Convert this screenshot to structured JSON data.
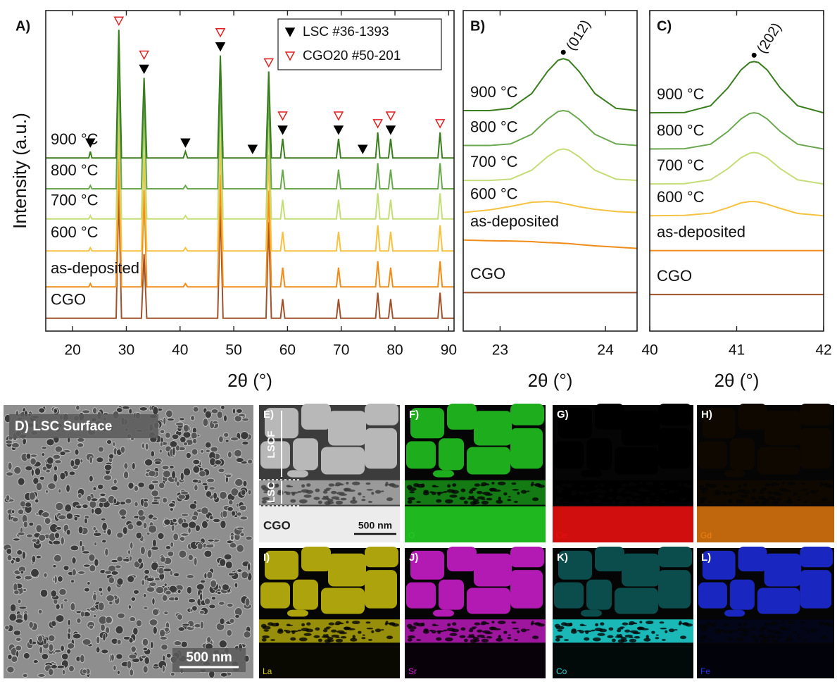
{
  "chart_data": [
    {
      "type": "line",
      "label": "A)",
      "xlabel": "2θ (°)",
      "ylabel": "Intensity (a.u.)",
      "xlim": [
        15,
        91
      ],
      "xticks": [
        20,
        30,
        40,
        50,
        60,
        70,
        80,
        90
      ],
      "ylim": [
        0,
        100
      ],
      "legend": "upper right",
      "x": [
        15,
        23,
        23.3,
        23.6,
        28.1,
        28.6,
        29.1,
        32.8,
        33.3,
        33.8,
        40.6,
        41,
        41.4,
        47,
        47.5,
        48,
        56,
        56.5,
        57,
        58.7,
        59.1,
        59.5,
        69.1,
        69.5,
        69.9,
        76.4,
        76.8,
        77.2,
        78.8,
        79.2,
        79.6,
        88,
        88.4,
        88.8,
        91
      ],
      "series": [
        {
          "name": "900 °C",
          "color": "#3a7d1e",
          "values": [
            54,
            54,
            56,
            54,
            54,
            94,
            54,
            54,
            79,
            54,
            54,
            56,
            54,
            54,
            86,
            54,
            54,
            81,
            54,
            54,
            60,
            54,
            54,
            60,
            54,
            54,
            62,
            54,
            54,
            60,
            54,
            54,
            62,
            54,
            54
          ]
        },
        {
          "name": "800 °C",
          "color": "#6aa84f",
          "values": [
            44.4,
            44.4,
            45.4,
            44.4,
            44.4,
            84.4,
            44.4,
            44.4,
            74.4,
            44.4,
            44.4,
            45.4,
            44.4,
            44.4,
            79.4,
            44.4,
            44.4,
            74.4,
            44.4,
            44.4,
            50.4,
            44.4,
            44.4,
            50.4,
            44.4,
            44.4,
            52.4,
            44.4,
            44.4,
            50.4,
            44.4,
            44.4,
            52.4,
            44.4,
            44.4
          ]
        },
        {
          "name": "700 °C",
          "color": "#c5dd78",
          "values": [
            35,
            35,
            36,
            35,
            35,
            75,
            35,
            35,
            65,
            35,
            35,
            36,
            35,
            35,
            70,
            35,
            35,
            65,
            35,
            35,
            41,
            35,
            35,
            41,
            35,
            35,
            43,
            35,
            35,
            41,
            35,
            35,
            43,
            35,
            35
          ]
        },
        {
          "name": "600 °C",
          "color": "#f5c242",
          "values": [
            25,
            25,
            26,
            25,
            25,
            65,
            25,
            25,
            55,
            25,
            25,
            26,
            25,
            25,
            60,
            25,
            25,
            55,
            25,
            25,
            31,
            25,
            25,
            31,
            25,
            25,
            33,
            25,
            25,
            31,
            25,
            25,
            33,
            25,
            25
          ]
        },
        {
          "name": "as-deposited",
          "color": "#f08c1a",
          "values": [
            13.8,
            13.8,
            14.8,
            13.8,
            13.8,
            53.8,
            13.8,
            13.8,
            43.8,
            13.8,
            13.8,
            14.8,
            13.8,
            13.8,
            48.8,
            13.8,
            13.8,
            43.8,
            13.8,
            13.8,
            19.8,
            13.8,
            13.8,
            19.8,
            13.8,
            13.8,
            21.8,
            13.8,
            13.8,
            19.8,
            13.8,
            13.8,
            21.8,
            13.8,
            13.8
          ]
        },
        {
          "name": "CGO",
          "color": "#a0522d",
          "values": [
            4,
            4,
            4,
            4,
            4,
            44,
            4,
            4,
            24,
            4,
            4,
            4,
            4,
            4,
            39,
            4,
            4,
            34,
            4,
            4,
            10,
            4,
            4,
            10,
            4,
            4,
            12,
            4,
            4,
            10,
            4,
            4,
            12,
            4,
            4
          ]
        }
      ],
      "reference_patterns": [
        {
          "name": "LSC #36-1393",
          "color": "#000000",
          "marker": "filled",
          "positions": [
            23.3,
            33.3,
            41,
            47.5,
            53.5,
            59.1,
            69.5,
            74,
            79.2
          ]
        },
        {
          "name": "CGO20 #50-201",
          "color": "#e02020",
          "marker": "open",
          "positions": [
            28.6,
            33.3,
            47.5,
            56.5,
            59.1,
            69.5,
            76.8,
            79.2,
            88.4
          ]
        }
      ]
    },
    {
      "type": "line",
      "label": "B)",
      "xlabel": "2θ (°)",
      "xlim": [
        22.65,
        24.3
      ],
      "xticks": [
        23,
        24
      ],
      "ylim": [
        0,
        100
      ],
      "x": [
        22.65,
        22.9,
        23.1,
        23.3,
        23.45,
        23.55,
        23.6,
        23.65,
        23.75,
        23.9,
        24.1,
        24.3
      ],
      "annotation": {
        "text": "(012)",
        "x": 23.6
      },
      "series": [
        {
          "name": "900 °C",
          "color": "#3a7d1e",
          "values": [
            68.8,
            68.8,
            69.5,
            74.1,
            81.0,
            84.5,
            85.0,
            84.5,
            81.0,
            74.1,
            69.5,
            68.8
          ]
        },
        {
          "name": "800 °C",
          "color": "#6aa84f",
          "values": [
            57.9,
            57.9,
            58.4,
            61.4,
            66.1,
            68.5,
            68.8,
            68.5,
            66.1,
            61.4,
            58.4,
            57.9
          ]
        },
        {
          "name": "700 °C",
          "color": "#c5dd78",
          "values": [
            47,
            47,
            47.4,
            50.2,
            54.4,
            56.5,
            56.8,
            56.5,
            54.4,
            50.2,
            47.4,
            47
          ]
        },
        {
          "name": "600 °C",
          "color": "#f5c242",
          "values": [
            37,
            37.8,
            38.9,
            40.2,
            40.4,
            40.2,
            39.8,
            39.5,
            38.8,
            38,
            37.3,
            37
          ]
        },
        {
          "name": "as-deposited",
          "color": "#f08c1a",
          "values": [
            28.4,
            28.2,
            28.1,
            27.9,
            27.6,
            27.5,
            27.4,
            27.3,
            27,
            26.6,
            26.2,
            25.8
          ]
        },
        {
          "name": "CGO",
          "color": "#a0522d",
          "values": [
            12,
            12,
            12,
            12,
            12,
            12,
            12,
            12,
            12,
            12,
            12,
            12
          ]
        }
      ]
    },
    {
      "type": "line",
      "label": "C)",
      "xlabel": "2θ (°)",
      "xlim": [
        40,
        42
      ],
      "xticks": [
        40,
        41,
        42
      ],
      "ylim": [
        0,
        100
      ],
      "x": [
        40,
        40.4,
        40.7,
        40.9,
        41.05,
        41.15,
        41.2,
        41.25,
        41.35,
        41.5,
        41.7,
        42
      ],
      "annotation": {
        "text": "(202)",
        "x": 41.2
      },
      "series": [
        {
          "name": "900 °C",
          "color": "#3a7d1e",
          "values": [
            68.1,
            68.2,
            70.3,
            75.9,
            81.5,
            83.8,
            84.1,
            83.8,
            81.5,
            75.9,
            70.3,
            68.1
          ]
        },
        {
          "name": "800 °C",
          "color": "#6aa84f",
          "values": [
            56.8,
            56.9,
            58.3,
            62.3,
            66.2,
            67.9,
            68.1,
            67.9,
            66.2,
            62.3,
            58.3,
            56.8
          ]
        },
        {
          "name": "700 °C",
          "color": "#c5dd78",
          "values": [
            45.9,
            46,
            47.2,
            50.7,
            54.1,
            55.5,
            55.7,
            55.5,
            54.1,
            50.7,
            47.2,
            45.9
          ]
        },
        {
          "name": "600 °C",
          "color": "#f5c242",
          "values": [
            36,
            36.1,
            36.8,
            38.5,
            40,
            40.4,
            40.4,
            40.3,
            39.6,
            38.3,
            36.7,
            36
          ]
        },
        {
          "name": "as-deposited",
          "color": "#f08c1a",
          "values": [
            25.1,
            25.1,
            25.1,
            25.1,
            25.1,
            25.1,
            25.1,
            25.1,
            25.1,
            25.1,
            25.1,
            25.1
          ]
        },
        {
          "name": "CGO",
          "color": "#a0522d",
          "values": [
            11.4,
            11.4,
            11.4,
            11.4,
            11.4,
            11.4,
            11.4,
            11.4,
            11.4,
            11.4,
            11.4,
            11.4
          ]
        }
      ]
    }
  ],
  "image_panels": {
    "surface": {
      "label": "D) LSC Surface",
      "scale_bar": "500 nm"
    },
    "cross_section": {
      "label": "E)",
      "layers": [
        "LSCF",
        "LSC",
        "CGO"
      ],
      "scale_bar": "500 nm"
    },
    "maps": [
      {
        "label": "F)",
        "element": "O",
        "color": "#22cc22"
      },
      {
        "label": "G)",
        "element": "Ce",
        "color": "#e81010"
      },
      {
        "label": "H)",
        "element": "Gd",
        "color": "#f08010"
      },
      {
        "label": "I)",
        "element": "La",
        "color": "#d8cc10"
      },
      {
        "label": "J)",
        "element": "Sr",
        "color": "#e020e0"
      },
      {
        "label": "K)",
        "element": "Co",
        "color": "#20d8d8"
      },
      {
        "label": "L)",
        "element": "Fe",
        "color": "#2030f0"
      }
    ]
  }
}
